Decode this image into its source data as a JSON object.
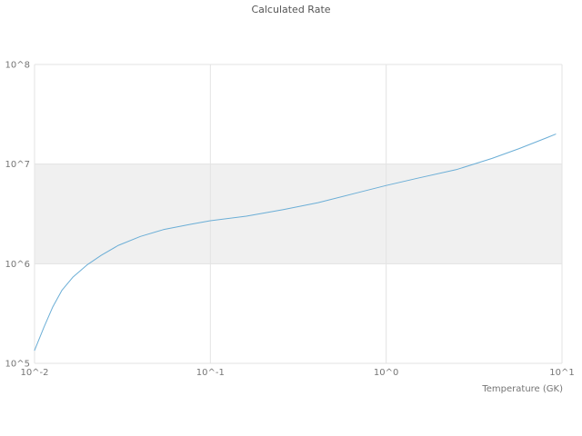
{
  "page": {
    "background": "#ffffff"
  },
  "chart_data": {
    "type": "line",
    "title": "Calculated Rate",
    "xlabel": "Temperature (GK)",
    "ylabel": "",
    "x_scale": "log",
    "y_scale": "log",
    "xlim": [
      0.01,
      10
    ],
    "ylim": [
      100000,
      100000000
    ],
    "x_ticks": [
      "10^-2",
      "10^-1",
      "10^0",
      "10^1"
    ],
    "x_tick_values": [
      0.01,
      0.1,
      1,
      10
    ],
    "y_ticks": [
      "10^5",
      "10^6",
      "10^7",
      "10^8"
    ],
    "y_tick_values": [
      100000,
      1000000,
      10000000,
      100000000
    ],
    "grid": true,
    "grid_color": "#e3e3e3",
    "band": {
      "y": [
        1000000,
        10000000
      ],
      "color": "#f0f0f0"
    },
    "legend": "none",
    "series": [
      {
        "name": "Calculated Rate",
        "color": "#6baed6",
        "x": [
          0.01,
          0.0113,
          0.0127,
          0.0143,
          0.0165,
          0.02,
          0.024,
          0.03,
          0.04,
          0.054,
          0.078,
          0.1,
          0.16,
          0.26,
          0.41,
          0.67,
          1.0,
          1.5,
          2.5,
          4.0,
          5.7,
          8.2,
          9.2
        ],
        "y": [
          135000,
          230000,
          370000,
          540000,
          730000,
          980000,
          1220000,
          1530000,
          1880000,
          2200000,
          2500000,
          2700000,
          3000000,
          3500000,
          4100000,
          5100000,
          6100000,
          7200000,
          8800000,
          11400000,
          14300000,
          18400000,
          20000000
        ]
      }
    ]
  }
}
